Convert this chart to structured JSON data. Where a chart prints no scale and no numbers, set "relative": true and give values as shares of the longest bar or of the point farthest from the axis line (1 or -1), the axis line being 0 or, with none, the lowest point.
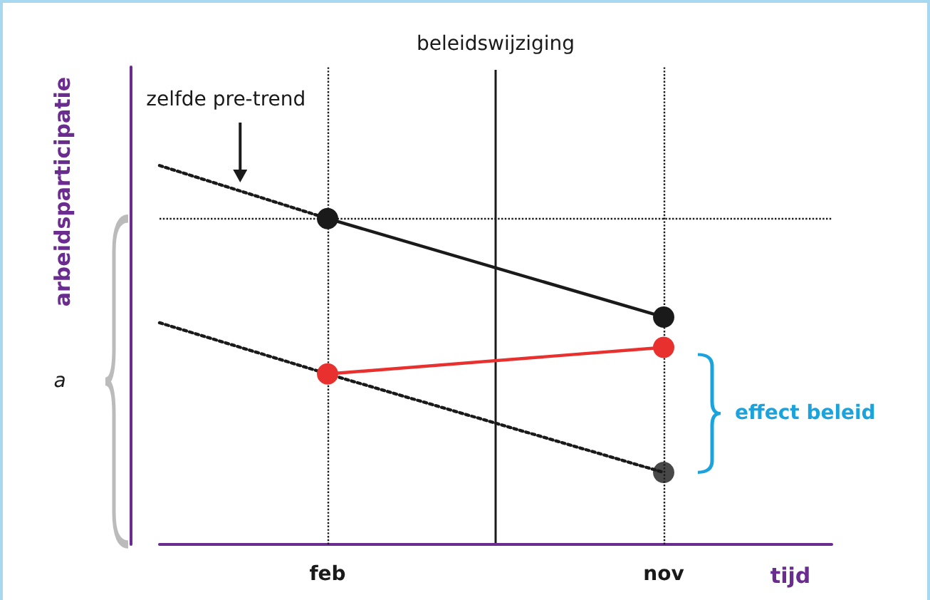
{
  "chart_data": {
    "type": "line",
    "relative": true,
    "xlabel": "tijd",
    "ylabel": "arbeidsparticipatie",
    "categories": [
      null,
      "feb",
      null,
      "nov",
      null
    ],
    "grid": false,
    "series": [
      {
        "color": "#1a1a1a",
        "values": [
          1,
          0.86,
          null,
          null,
          null
        ],
        "line_style": "dotted",
        "marker": "none"
      },
      {
        "color": "#1a1a1a",
        "values": [
          null,
          0.86,
          null,
          0.6,
          null
        ],
        "line_style": "solid",
        "marker": "circle"
      },
      {
        "color": "#1a1a1a",
        "values": [
          0.585,
          0.45,
          null,
          0.19,
          null
        ],
        "line_style": "dotted",
        "marker": "none"
      },
      {
        "type": "scatter",
        "color": "#1a1a1a",
        "values": [
          null,
          null,
          null,
          0.19,
          null
        ],
        "marker": "circle"
      },
      {
        "color": "#e8312f",
        "values": [
          null,
          0.45,
          null,
          0.52,
          null
        ],
        "line_style": "solid",
        "marker": "circle"
      }
    ],
    "ref_lines": [
      {
        "axis": "x",
        "value": "feb",
        "label": null,
        "color": "#1a1a1a",
        "line_style": "dotted"
      },
      {
        "axis": "x",
        "value": "nov",
        "label": null,
        "color": "#1a1a1a",
        "line_style": "dotted"
      },
      {
        "axis": "y",
        "value": 0.86,
        "label": null,
        "color": "#1a1a1a",
        "line_style": "dotted"
      }
    ],
    "annotations": [
      "zelfde pre-trend",
      "a",
      "effect beleid",
      "beleidswijziging"
    ]
  }
}
